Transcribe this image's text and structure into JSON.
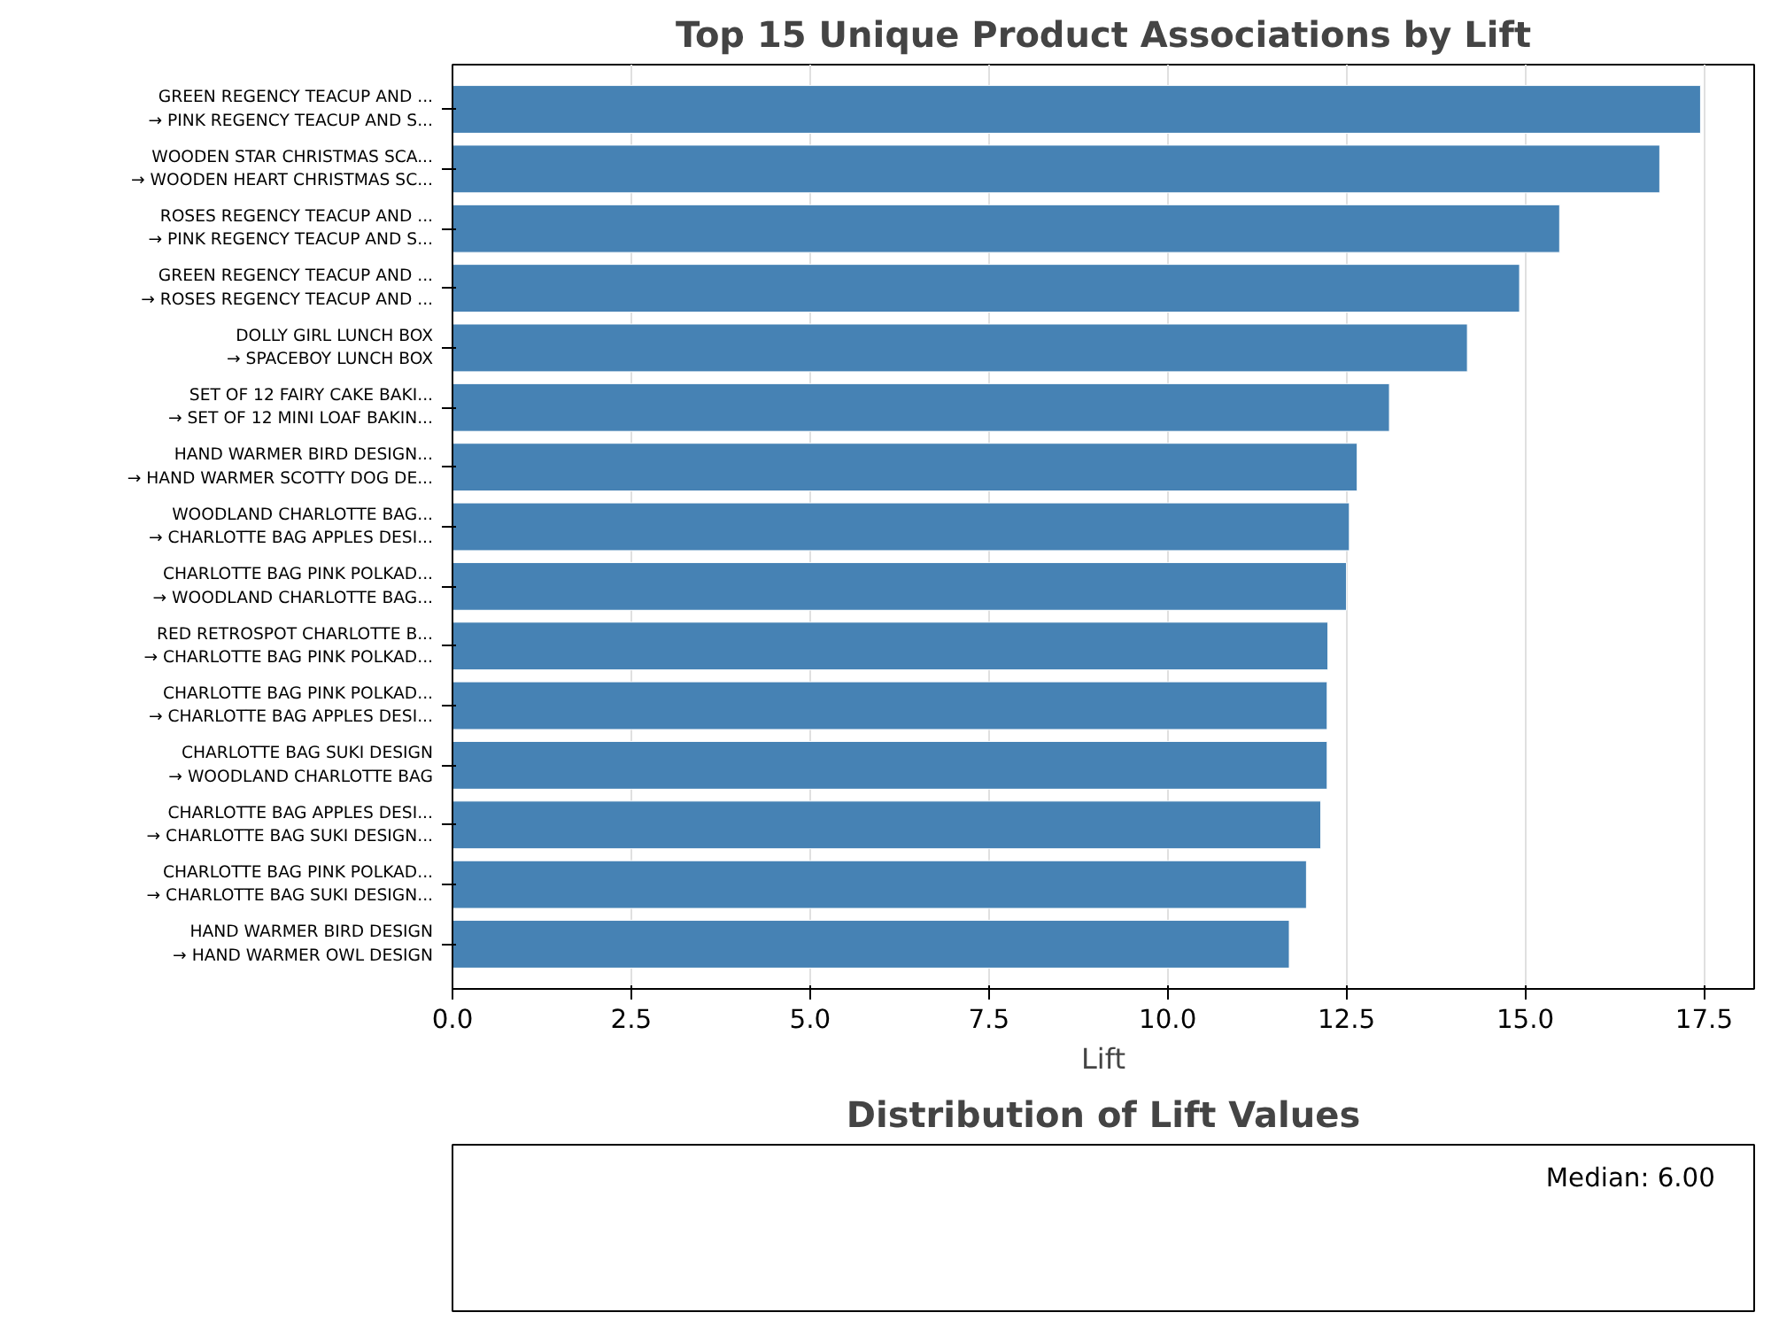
{
  "chart_data": [
    {
      "type": "bar",
      "orientation": "horizontal",
      "title": "Top 15 Unique Product Associations by Lift",
      "xlabel": "Lift",
      "categories": [
        "GREEN REGENCY TEACUP AND ...\n→ PINK REGENCY TEACUP AND S...",
        "WOODEN STAR CHRISTMAS SCA...\n→ WOODEN HEART CHRISTMAS SC...",
        "ROSES REGENCY TEACUP AND ...\n→ PINK REGENCY TEACUP AND S...",
        "GREEN REGENCY TEACUP AND ...\n→ ROSES REGENCY TEACUP AND ...",
        "DOLLY GIRL LUNCH BOX\n→ SPACEBOY LUNCH BOX",
        "SET OF 12 FAIRY CAKE BAKI...\n→ SET OF 12 MINI LOAF BAKIN...",
        "HAND WARMER BIRD DESIGN...\n→ HAND WARMER SCOTTY DOG DE...",
        "WOODLAND CHARLOTTE BAG...\n→ CHARLOTTE BAG APPLES DESI...",
        "CHARLOTTE BAG PINK POLKAD...\n→ WOODLAND CHARLOTTE BAG...",
        "RED RETROSPOT CHARLOTTE B...\n→ CHARLOTTE BAG PINK POLKAD...",
        "CHARLOTTE BAG PINK POLKAD...\n→ CHARLOTTE BAG APPLES DESI...",
        "CHARLOTTE BAG SUKI DESIGN\n→ WOODLAND CHARLOTTE BAG",
        "CHARLOTTE BAG APPLES DESI...\n→ CHARLOTTE BAG SUKI DESIGN...",
        "CHARLOTTE BAG PINK POLKAD...\n→ CHARLOTTE BAG SUKI DESIGN...",
        "HAND WARMER BIRD DESIGN\n→ HAND WARMER OWL DESIGN"
      ],
      "values": [
        17.45,
        16.88,
        15.48,
        14.92,
        14.19,
        13.1,
        12.65,
        12.54,
        12.5,
        12.24,
        12.23,
        12.23,
        12.14,
        11.94,
        11.7
      ],
      "color": "#4682b4",
      "xlim": [
        0,
        18.2
      ],
      "xticks": [
        {
          "value": 0,
          "label": "0.0"
        },
        2.5,
        {
          "value": 5,
          "label": "5.0"
        },
        7.5,
        {
          "value": 10,
          "label": "10.0"
        },
        12.5,
        {
          "value": 15,
          "label": "15.0"
        },
        17.5
      ],
      "grid": "x"
    },
    {
      "type": "other",
      "title": "Distribution of Lift Values",
      "annotations": [
        "Median: 6.00"
      ]
    }
  ]
}
